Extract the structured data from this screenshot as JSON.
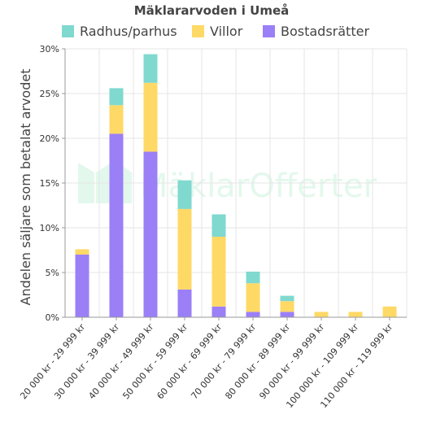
{
  "chart_data": {
    "type": "bar",
    "stacked": true,
    "title": "Mäklararvoden i Umeå",
    "xlabel": "",
    "ylabel": "Andelen säljare som betalat arvodet",
    "ylim": [
      0,
      30
    ],
    "y_ticks": [
      "0%",
      "5%",
      "10%",
      "15%",
      "20%",
      "25%",
      "30%"
    ],
    "grid": true,
    "legend_position": "top",
    "categories": [
      "20 000 kr - 29 999 kr",
      "30 000 kr - 39 999 kr",
      "40 000 kr - 49 999 kr",
      "50 000 kr - 59 999 kr",
      "60 000 kr - 69 999 kr",
      "70 000 kr - 79 999 kr",
      "80 000 kr - 89 999 kr",
      "90 000 kr - 99 999 kr",
      "100 000 kr - 109 999 kr",
      "110 000 kr - 119 999 kr"
    ],
    "series": [
      {
        "name": "Bostadsrätter",
        "color": "#9b7ff7",
        "values": [
          7.0,
          20.5,
          18.5,
          3.1,
          1.2,
          0.6,
          0.6,
          0.0,
          0.0,
          0.0
        ]
      },
      {
        "name": "Villor",
        "color": "#ffd966",
        "values": [
          0.6,
          3.2,
          7.7,
          9.0,
          7.8,
          3.2,
          1.2,
          0.6,
          0.6,
          1.2
        ]
      },
      {
        "name": "Radhus/parhus",
        "color": "#7fd9cf",
        "values": [
          0.0,
          1.9,
          3.2,
          3.2,
          2.5,
          1.3,
          0.6,
          0.0,
          0.0,
          0.0
        ]
      }
    ],
    "legend_order": [
      "Radhus/parhus",
      "Villor",
      "Bostadsrätter"
    ]
  },
  "watermark": {
    "text": "MäklarOfferter",
    "icon": "house-logo-icon"
  }
}
